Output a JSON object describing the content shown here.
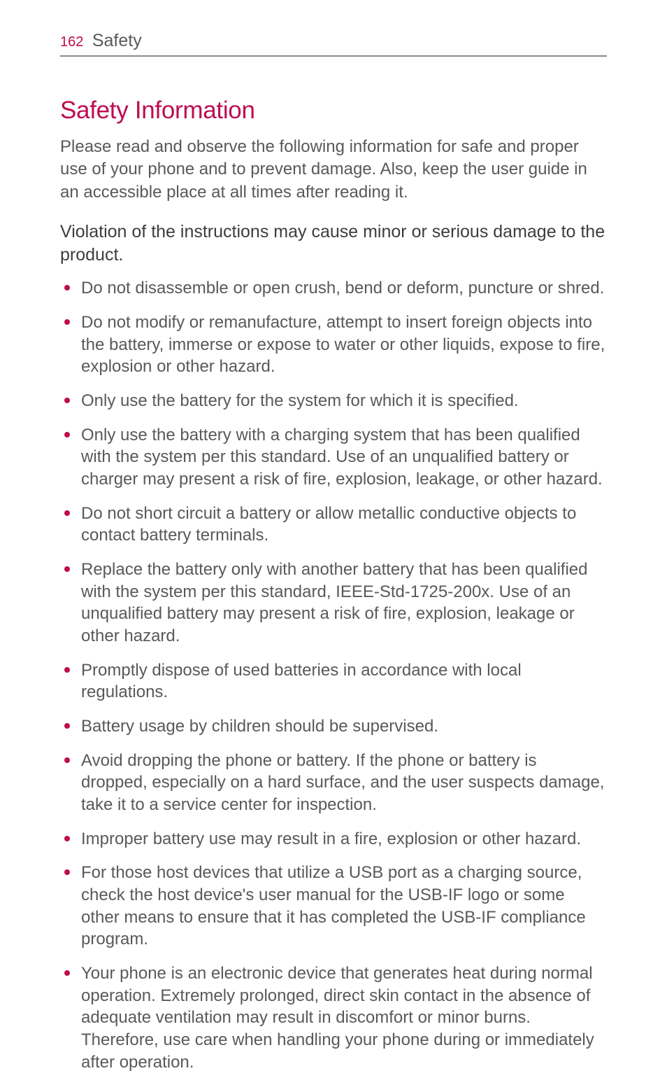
{
  "header": {
    "page_number": "162",
    "section": "Safety"
  },
  "title": "Safety Information",
  "intro": "Please read and observe the following information for safe and proper use of your phone and to prevent damage. Also, keep the user guide in an accessible place at all times after reading it.",
  "subhead": "Violation of the instructions may cause minor or serious damage to the product.",
  "bullets": [
    "Do not disassemble or open crush, bend or deform, puncture or shred.",
    "Do not modify or remanufacture, attempt to insert foreign objects into the battery, immerse or expose to water or other liquids, expose to fire, explosion or other hazard.",
    "Only use the battery for the system for which it is specified.",
    "Only use the battery with a charging system that has been qualified with the system per this standard. Use of an unqualified battery or charger may present a risk of fire, explosion, leakage, or other hazard.",
    "Do not short circuit a battery or allow metallic conductive objects to contact battery terminals.",
    "Replace the battery only with another battery that has been qualified with the system per this standard, IEEE-Std-1725-200x. Use of an unqualified battery may present a risk of fire, explosion, leakage or other hazard.",
    "Promptly dispose of used batteries in accordance with local regulations.",
    "Battery usage by children should be supervised.",
    "Avoid dropping the phone or battery. If the phone or battery is dropped, especially on a hard surface, and the user suspects   damage, take it to a service center for inspection.",
    "Improper battery use may result in a fire, explosion or other hazard.",
    "For those host devices that utilize a USB port as a charging source, check the host device's user manual for the USB-IF logo or some other means to ensure that it has completed the USB-IF compliance program.",
    "Your phone is an electronic device that generates heat during normal operation. Extremely prolonged, direct skin contact in the absence of adequate ventilation may result in discomfort or minor burns.  Therefore, use care when handling your phone during or immediately after operation."
  ],
  "colors": {
    "accent": "#be0d4e",
    "body_text": "#595959",
    "dark_text": "#3d3d3d",
    "rule": "#8a8a8a",
    "background": "#ffffff"
  },
  "typography": {
    "page_num_size": 20,
    "breadcrumb_size": 25,
    "title_size": 35,
    "body_size": 24,
    "subhead_size": 25
  }
}
